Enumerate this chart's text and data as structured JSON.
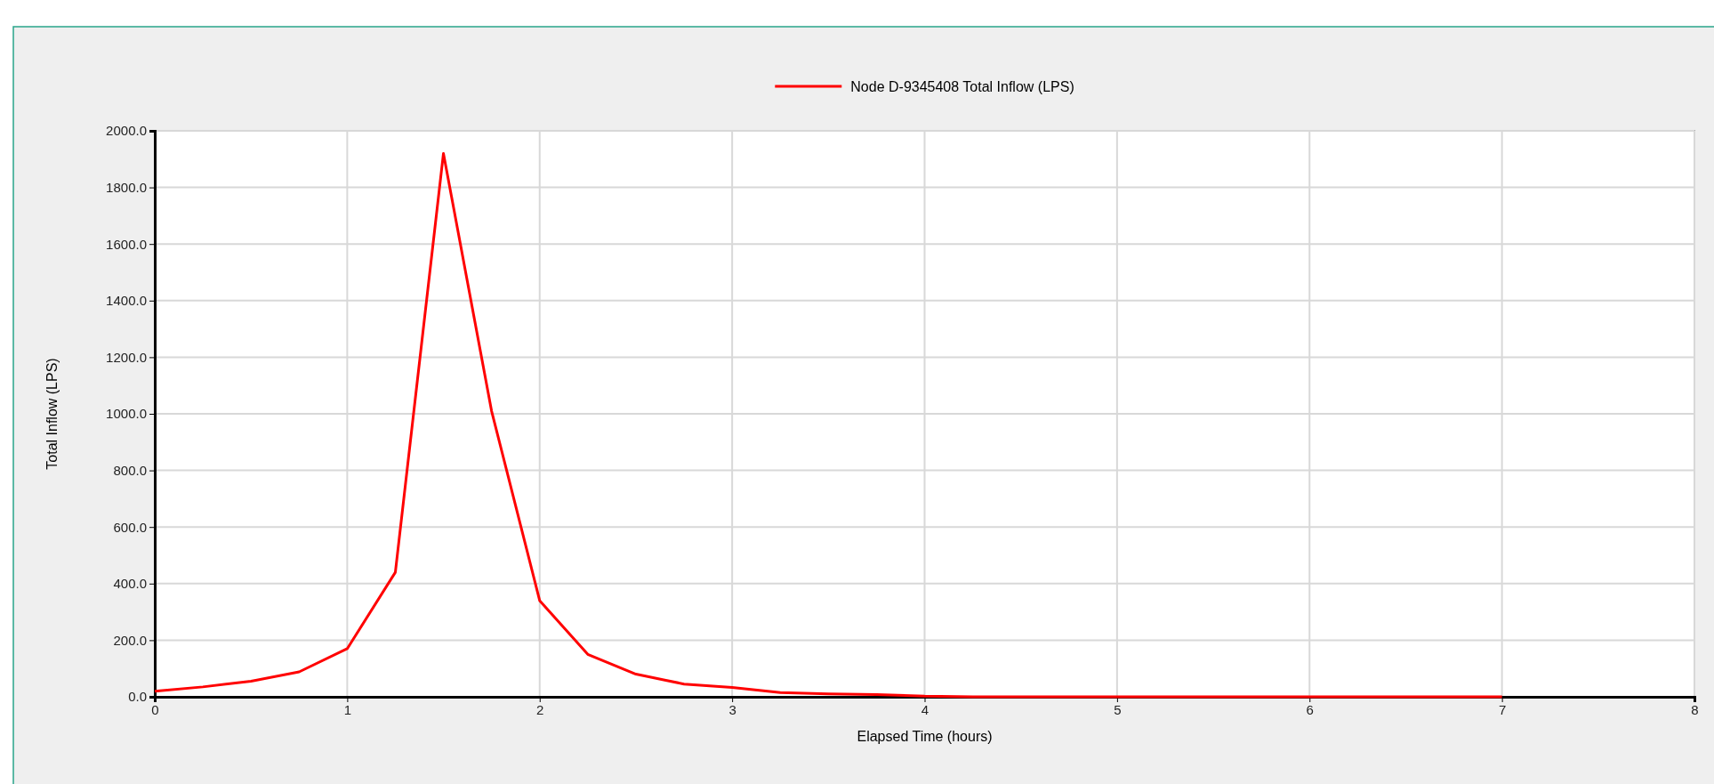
{
  "chart_data": {
    "type": "line",
    "xlabel": "Elapsed Time (hours)",
    "ylabel": "Total Inflow (LPS)",
    "x": [
      0,
      0.25,
      0.5,
      0.75,
      1,
      1.25,
      1.5,
      1.75,
      2,
      2.25,
      2.5,
      2.75,
      3,
      3.25,
      3.5,
      3.75,
      4,
      4.25,
      4.5,
      4.75,
      5,
      5.25,
      5.5,
      5.75,
      6,
      6.25,
      6.5,
      6.75,
      7
    ],
    "series": [
      {
        "name": "Node D-9345408 Total Inflow (LPS)",
        "color": "#ff0000",
        "values": [
          20,
          35,
          55,
          88,
          170,
          440,
          1920,
          1010,
          340,
          150,
          80,
          45,
          33,
          15,
          10,
          8,
          2,
          0,
          0,
          0,
          0,
          0,
          0,
          0,
          0,
          0,
          0,
          0,
          0
        ]
      }
    ],
    "xlim": [
      0,
      8
    ],
    "xticks": [
      0,
      1,
      2,
      3,
      4,
      5,
      6,
      7,
      8
    ],
    "ylim": [
      0,
      2000
    ],
    "yticks": [
      {
        "value": 0,
        "label": "0.0"
      },
      {
        "value": 200,
        "label": "200.0"
      },
      {
        "value": 400,
        "label": "400.0"
      },
      {
        "value": 600,
        "label": "600.0"
      },
      {
        "value": 800,
        "label": "800.0"
      },
      {
        "value": 1000,
        "label": "1000.0"
      },
      {
        "value": 1200,
        "label": "1200.0"
      },
      {
        "value": 1400,
        "label": "1400.0"
      },
      {
        "value": 1600,
        "label": "1600.0"
      },
      {
        "value": 1800,
        "label": "1800.0"
      },
      {
        "value": 2000,
        "label": "2000.0"
      }
    ],
    "grid": true,
    "legend": "top",
    "marker": "none",
    "line_style": "solid"
  }
}
